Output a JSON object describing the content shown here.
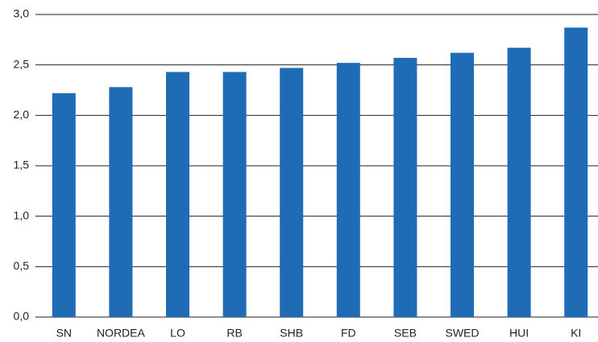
{
  "chart_data": {
    "type": "bar",
    "categories": [
      "SN",
      "NORDEA",
      "LO",
      "RB",
      "SHB",
      "FD",
      "SEB",
      "SWED",
      "HUI",
      "KI"
    ],
    "values": [
      2.22,
      2.28,
      2.43,
      2.43,
      2.47,
      2.52,
      2.57,
      2.62,
      2.67,
      2.87
    ],
    "color": "#1f6bb5",
    "ylim": [
      0,
      3
    ],
    "yticks": [
      {
        "value": 0,
        "label": "0,0"
      },
      {
        "value": 0.5,
        "label": "0,5"
      },
      {
        "value": 1,
        "label": "1,0"
      },
      {
        "value": 1.5,
        "label": "1,5"
      },
      {
        "value": 2,
        "label": "2,0"
      },
      {
        "value": 2.5,
        "label": "2,5"
      },
      {
        "value": 3,
        "label": "3,0"
      }
    ],
    "grid": true
  }
}
